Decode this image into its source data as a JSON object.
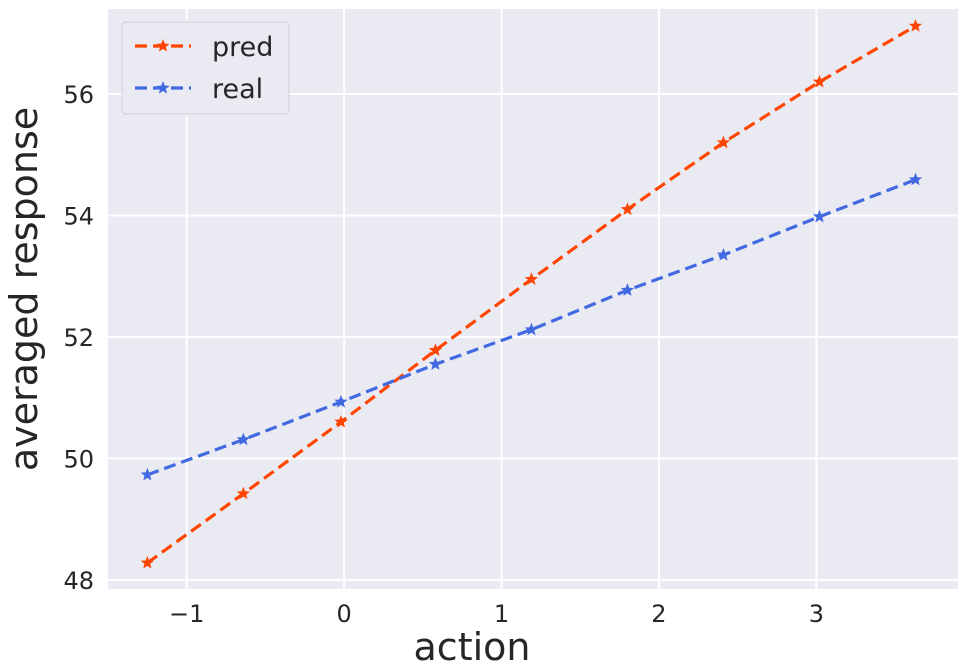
{
  "chart_data": {
    "type": "line",
    "title": "",
    "xlabel": "action",
    "ylabel": "averaged response",
    "xlim": [
      -1.5,
      3.9
    ],
    "ylim": [
      47.85,
      57.4
    ],
    "xticks": [
      -1,
      0,
      1,
      2,
      3
    ],
    "xtick_labels": [
      "−1",
      "0",
      "1",
      "2",
      "3"
    ],
    "yticks": [
      48,
      50,
      52,
      54,
      56
    ],
    "ytick_labels": [
      "48",
      "50",
      "52",
      "54",
      "56"
    ],
    "grid": true,
    "legend_position": "top-left",
    "marker": "star",
    "linestyle": "dashed",
    "series": [
      {
        "name": "pred",
        "color": "#ff4500",
        "x": [
          -1.25,
          -0.64,
          -0.02,
          0.58,
          1.19,
          1.8,
          2.41,
          3.02,
          3.63
        ],
        "y": [
          48.28,
          49.42,
          50.6,
          51.78,
          52.95,
          54.1,
          55.2,
          56.2,
          57.12
        ]
      },
      {
        "name": "real",
        "color": "#4169e1",
        "x": [
          -1.25,
          -0.64,
          -0.02,
          0.58,
          1.19,
          1.8,
          2.41,
          3.02,
          3.63
        ],
        "y": [
          49.73,
          50.31,
          50.93,
          51.55,
          52.12,
          52.77,
          53.35,
          53.98,
          54.59
        ]
      }
    ]
  }
}
